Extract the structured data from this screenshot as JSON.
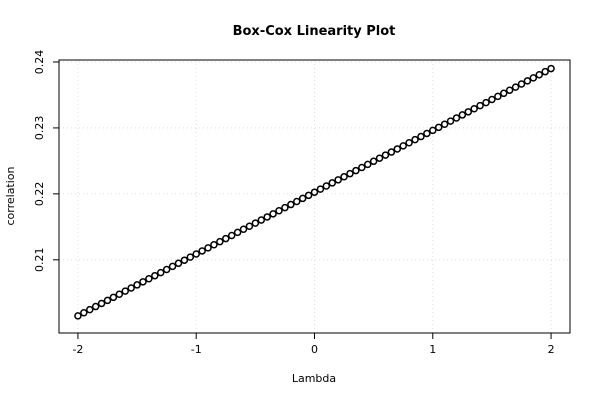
{
  "chart_data": {
    "type": "scatter",
    "title": "Box-Cox Linearity Plot",
    "x_label": "Lambda",
    "y_label": "correlation",
    "x": [
      -2,
      -1.95,
      -1.9,
      -1.85,
      -1.8,
      -1.75,
      -1.7,
      -1.65,
      -1.6,
      -1.55,
      -1.5,
      -1.45,
      -1.4,
      -1.35,
      -1.3,
      -1.25,
      -1.2,
      -1.15,
      -1.1,
      -1.05,
      -1,
      -0.95,
      -0.9,
      -0.85,
      -0.8,
      -0.75,
      -0.7,
      -0.65,
      -0.6,
      -0.55,
      -0.5,
      -0.45,
      -0.4,
      -0.35,
      -0.3,
      -0.25,
      -0.2,
      -0.15,
      -0.1,
      -0.05,
      0,
      0.05,
      0.1,
      0.15,
      0.2,
      0.25,
      0.3,
      0.35,
      0.4,
      0.45,
      0.5,
      0.55,
      0.6,
      0.65,
      0.7,
      0.75,
      0.8,
      0.85,
      0.9,
      0.95,
      1,
      1.05,
      1.1,
      1.15,
      1.2,
      1.25,
      1.3,
      1.35,
      1.4,
      1.45,
      1.5,
      1.55,
      1.6,
      1.65,
      1.7,
      1.75,
      1.8,
      1.85,
      1.9,
      1.95,
      2
    ],
    "values": [
      0.2015,
      0.20197,
      0.20244,
      0.20291,
      0.20338,
      0.20384,
      0.20431,
      0.20478,
      0.20525,
      0.20572,
      0.20619,
      0.20666,
      0.20713,
      0.20759,
      0.20806,
      0.20853,
      0.209,
      0.20947,
      0.20994,
      0.21041,
      0.21088,
      0.21134,
      0.21181,
      0.21228,
      0.21275,
      0.21322,
      0.21369,
      0.21416,
      0.21463,
      0.21509,
      0.21556,
      0.21603,
      0.2165,
      0.21697,
      0.21744,
      0.21791,
      0.21838,
      0.21884,
      0.21931,
      0.21978,
      0.22025,
      0.22072,
      0.22119,
      0.22166,
      0.22213,
      0.22259,
      0.22306,
      0.22353,
      0.224,
      0.22447,
      0.22494,
      0.22541,
      0.22588,
      0.22634,
      0.22681,
      0.22728,
      0.22775,
      0.22822,
      0.22869,
      0.22916,
      0.22963,
      0.23009,
      0.23056,
      0.23103,
      0.2315,
      0.23197,
      0.23244,
      0.23291,
      0.23338,
      0.23384,
      0.23431,
      0.23478,
      0.23525,
      0.23572,
      0.23619,
      0.23666,
      0.23713,
      0.23759,
      0.23806,
      0.23853,
      0.239
    ],
    "color": "#000000",
    "xlim": [
      -2.16,
      2.16
    ],
    "xticks": [
      -2,
      -1,
      0,
      1,
      2
    ],
    "ylim": [
      0.1989,
      0.2403
    ],
    "yticks": [
      0.21,
      0.22,
      0.23,
      0.24
    ],
    "grid": true
  }
}
